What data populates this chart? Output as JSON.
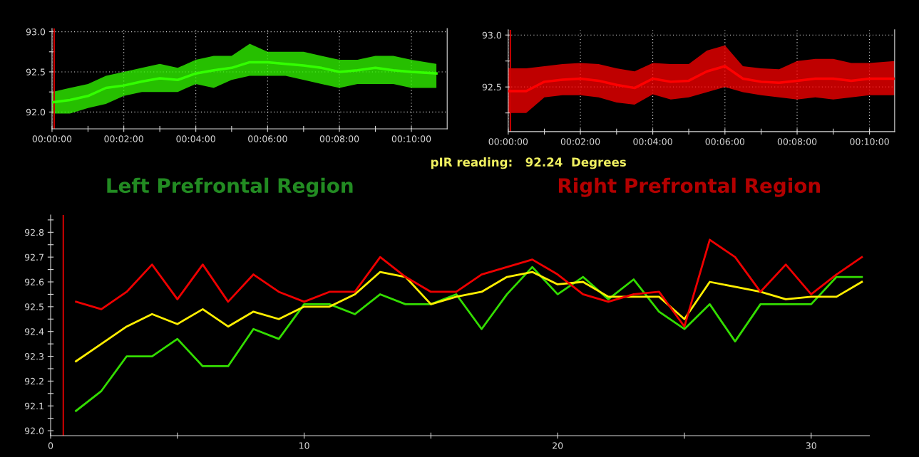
{
  "chart_data": [
    {
      "type": "line",
      "x": [
        0,
        0.0083,
        0.0167,
        0.025,
        0.0333,
        0.0417,
        0.05,
        0.0583,
        0.0667,
        0.075,
        0.0833,
        0.0917,
        0.1,
        0.1083,
        0.1167,
        0.125,
        0.1333,
        0.1417,
        0.15,
        0.1583,
        0.1667,
        0.1783
      ],
      "series": [
        {
          "color": "#33ff00",
          "values": [
            92.12,
            92.15,
            92.2,
            92.3,
            92.33,
            92.38,
            92.42,
            92.4,
            92.48,
            92.52,
            92.55,
            92.62,
            92.62,
            92.6,
            92.58,
            92.55,
            92.5,
            92.52,
            92.55,
            92.52,
            92.5,
            92.48
          ],
          "lower": [
            91.98,
            91.98,
            92.05,
            92.1,
            92.2,
            92.25,
            92.25,
            92.25,
            92.35,
            92.3,
            92.4,
            92.45,
            92.45,
            92.45,
            92.4,
            92.35,
            92.3,
            92.35,
            92.35,
            92.35,
            92.3,
            92.3
          ],
          "upper": [
            92.25,
            92.3,
            92.35,
            92.45,
            92.5,
            92.55,
            92.6,
            92.55,
            92.65,
            92.7,
            92.7,
            92.85,
            92.75,
            92.75,
            92.75,
            92.7,
            92.65,
            92.65,
            92.7,
            92.7,
            92.65,
            92.6
          ]
        }
      ],
      "xlim": [
        0,
        0.1833
      ],
      "ylim": [
        91.79,
        93.04
      ],
      "xticks": [
        {
          "value": 0,
          "label": "00:00:00"
        },
        {
          "value": 0.0167,
          "label": null
        },
        {
          "value": 0.0333,
          "label": "00:02:00"
        },
        {
          "value": 0.05,
          "label": null
        },
        {
          "value": 0.0667,
          "label": "00:04:00"
        },
        {
          "value": 0.0833,
          "label": null
        },
        {
          "value": 0.1,
          "label": "00:06:00"
        },
        {
          "value": 0.1167,
          "label": null
        },
        {
          "value": 0.1333,
          "label": "00:08:00"
        },
        {
          "value": 0.15,
          "label": null
        },
        {
          "value": 0.1667,
          "label": "00:10:00"
        }
      ],
      "yticks": [
        {
          "value": 92.0,
          "label": "92.0"
        },
        {
          "value": 92.25,
          "label": null
        },
        {
          "value": 92.5,
          "label": "92.5"
        },
        {
          "value": 92.75,
          "label": null
        },
        {
          "value": 93.0,
          "label": "93.0"
        }
      ],
      "grid": true,
      "ref_lines": [
        {
          "axis": "x",
          "value": 0.001,
          "color": "#cc0000"
        }
      ]
    },
    {
      "type": "line",
      "x": [
        0,
        0.0083,
        0.0167,
        0.025,
        0.0333,
        0.0417,
        0.05,
        0.0583,
        0.0667,
        0.075,
        0.0833,
        0.0917,
        0.1,
        0.1083,
        0.1167,
        0.125,
        0.1333,
        0.1417,
        0.15,
        0.1583,
        0.1667,
        0.1783
      ],
      "series": [
        {
          "color": "#ff0000",
          "values": [
            92.46,
            92.46,
            92.55,
            92.57,
            92.58,
            92.56,
            92.52,
            92.49,
            92.58,
            92.55,
            92.56,
            92.65,
            92.7,
            92.58,
            92.55,
            92.54,
            92.56,
            92.58,
            92.58,
            92.56,
            92.58,
            92.58
          ],
          "lower": [
            92.25,
            92.25,
            92.4,
            92.42,
            92.42,
            92.4,
            92.35,
            92.33,
            92.43,
            92.38,
            92.4,
            92.45,
            92.5,
            92.45,
            92.42,
            92.4,
            92.38,
            92.4,
            92.38,
            92.4,
            92.42,
            92.42
          ],
          "upper": [
            92.68,
            92.68,
            92.7,
            92.72,
            92.73,
            92.72,
            92.68,
            92.65,
            92.73,
            92.72,
            92.72,
            92.85,
            92.9,
            92.7,
            92.68,
            92.67,
            92.75,
            92.77,
            92.77,
            92.73,
            92.73,
            92.75
          ]
        }
      ],
      "xlim": [
        0,
        0.1783
      ],
      "ylim": [
        92.07,
        93.05
      ],
      "xticks": [
        {
          "value": 0,
          "label": "00:00:00"
        },
        {
          "value": 0.0167,
          "label": null
        },
        {
          "value": 0.0333,
          "label": "00:02:00"
        },
        {
          "value": 0.05,
          "label": null
        },
        {
          "value": 0.0667,
          "label": "00:04:00"
        },
        {
          "value": 0.0833,
          "label": null
        },
        {
          "value": 0.1,
          "label": "00:06:00"
        },
        {
          "value": 0.1167,
          "label": null
        },
        {
          "value": 0.1333,
          "label": "00:08:00"
        },
        {
          "value": 0.15,
          "label": null
        },
        {
          "value": 0.1667,
          "label": "00:10:00"
        }
      ],
      "yticks": [
        {
          "value": 92.25,
          "label": null
        },
        {
          "value": 92.5,
          "label": "92.5"
        },
        {
          "value": 92.75,
          "label": null
        },
        {
          "value": 93.0,
          "label": "93.0"
        }
      ],
      "grid": true,
      "ref_lines": [
        {
          "axis": "x",
          "value": 0.001,
          "color": "#cc0000"
        }
      ]
    },
    {
      "type": "line",
      "x": [
        1,
        2,
        3,
        4,
        5,
        6,
        7,
        8,
        9,
        10,
        11,
        12,
        13,
        14,
        15,
        16,
        17,
        18,
        19,
        20,
        21,
        22,
        23,
        24,
        25,
        26,
        27,
        28,
        29,
        30,
        31,
        32
      ],
      "series": [
        {
          "color": "#33dd00",
          "values": [
            92.08,
            92.16,
            92.3,
            92.3,
            92.37,
            92.26,
            92.26,
            92.41,
            92.37,
            92.51,
            92.51,
            92.47,
            92.55,
            92.51,
            92.51,
            92.55,
            92.41,
            92.55,
            92.66,
            92.55,
            92.62,
            92.53,
            92.61,
            92.48,
            92.41,
            92.51,
            92.36,
            92.51,
            92.51,
            92.51,
            92.62,
            92.62
          ]
        },
        {
          "color": "#ffee00",
          "values": [
            92.28,
            92.35,
            92.42,
            92.47,
            92.43,
            92.49,
            92.42,
            92.48,
            92.45,
            92.5,
            92.5,
            92.55,
            92.64,
            92.62,
            92.51,
            92.54,
            92.56,
            92.62,
            92.64,
            92.59,
            92.6,
            92.54,
            92.54,
            92.54,
            92.45,
            92.6,
            92.58,
            92.56,
            92.53,
            92.54,
            92.54,
            92.6
          ]
        },
        {
          "color": "#ee0000",
          "values": [
            92.52,
            92.49,
            92.56,
            92.67,
            92.53,
            92.67,
            92.52,
            92.63,
            92.56,
            92.52,
            92.56,
            92.56,
            92.7,
            92.62,
            92.56,
            92.56,
            92.63,
            92.66,
            92.69,
            92.63,
            92.55,
            92.52,
            92.55,
            92.56,
            92.42,
            92.77,
            92.7,
            92.56,
            92.67,
            92.55,
            92.63,
            92.7
          ]
        }
      ],
      "xlim": [
        0,
        32.3
      ],
      "ylim": [
        91.98,
        92.87
      ],
      "xticks": [
        0,
        {
          "value": 5,
          "label": null
        },
        10,
        {
          "value": 15,
          "label": null
        },
        20,
        {
          "value": 25,
          "label": null
        },
        30
      ],
      "yticks": [
        {
          "value": 92.0,
          "label": "92.0"
        },
        {
          "value": 92.05,
          "label": null
        },
        {
          "value": 92.1,
          "label": "92.1"
        },
        {
          "value": 92.15,
          "label": null
        },
        {
          "value": 92.2,
          "label": "92.2"
        },
        {
          "value": 92.25,
          "label": null
        },
        {
          "value": 92.3,
          "label": "92.3"
        },
        {
          "value": 92.35,
          "label": null
        },
        {
          "value": 92.4,
          "label": "92.4"
        },
        {
          "value": 92.45,
          "label": null
        },
        {
          "value": 92.5,
          "label": "92.5"
        },
        {
          "value": 92.55,
          "label": null
        },
        {
          "value": 92.6,
          "label": "92.6"
        },
        {
          "value": 92.65,
          "label": null
        },
        {
          "value": 92.7,
          "label": "92.7"
        },
        {
          "value": 92.75,
          "label": null
        },
        {
          "value": 92.8,
          "label": "92.8"
        },
        {
          "value": 92.85,
          "label": null
        }
      ],
      "ref_lines": [
        {
          "axis": "x",
          "value": 0.5,
          "color": "#cc0000"
        }
      ],
      "annotations": [
        "pIR reading:   92.24  Degrees",
        "Left Prefrontal Region",
        "Right Prefrontal Region"
      ]
    }
  ]
}
